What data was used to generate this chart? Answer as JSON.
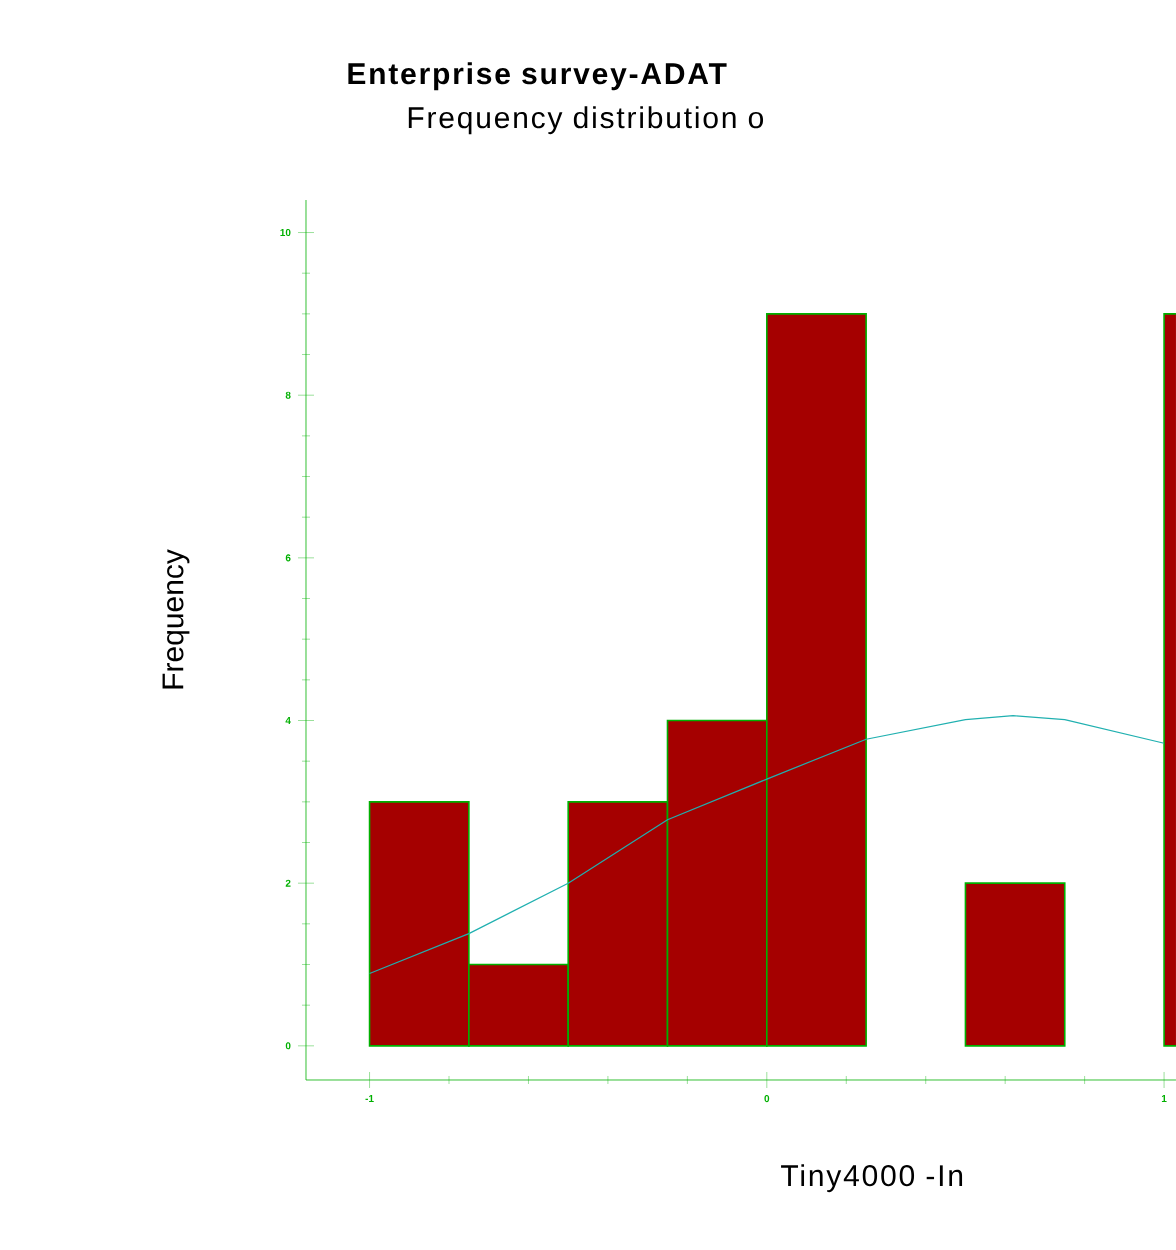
{
  "chart_data": {
    "type": "histogram",
    "title": "Enterprise survey-ADAT",
    "subtitle": "Frequency distribution o",
    "xlabel": "Tiny4000 -In",
    "ylabel": "Frequency",
    "bins": [
      -1,
      -0.75,
      -0.5,
      -0.25,
      0,
      0.25,
      0.5,
      0.75,
      1,
      1.25
    ],
    "values": [
      3,
      1,
      3,
      4,
      9,
      0,
      2,
      0,
      9
    ],
    "color": "#a50000",
    "xlim": [
      -1.16,
      1.03
    ],
    "ylim": [
      -0.42,
      10.4
    ],
    "xticks": [
      -1,
      0,
      1
    ],
    "yticks": [
      0,
      2,
      4,
      6,
      8,
      10
    ],
    "series": [
      {
        "type": "line",
        "color": "#20b0b0",
        "x": [
          -1,
          -0.75,
          -0.5,
          -0.25,
          0,
          0.25,
          0.5,
          0.62,
          0.75,
          1
        ],
        "values": [
          0.89,
          1.38,
          2.0,
          2.78,
          3.28,
          3.77,
          4.01,
          4.06,
          4.01,
          3.72
        ]
      }
    ]
  }
}
